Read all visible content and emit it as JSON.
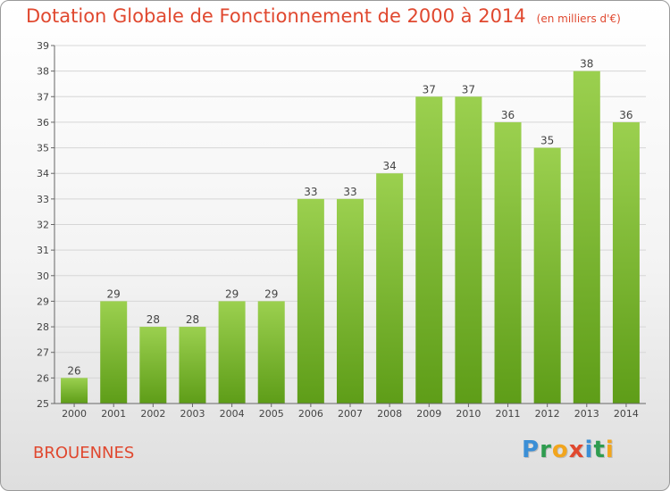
{
  "header": {
    "title": "Dotation Globale de Fonctionnement de 2000 à 2014",
    "unit": "(en milliers d'€)"
  },
  "footer": {
    "commune": "BROUENNES",
    "logo": "Proxiti"
  },
  "colors": {
    "bar_top": "#9bd04f",
    "bar_bottom": "#5e9d18",
    "title": "#e0482f"
  },
  "chart_data": {
    "type": "bar",
    "title": "Dotation Globale de Fonctionnement de 2000 à 2014",
    "xlabel": "",
    "ylabel": "",
    "ylim": [
      25,
      39
    ],
    "yticks": [
      25,
      26,
      27,
      28,
      29,
      30,
      31,
      32,
      33,
      34,
      35,
      36,
      37,
      38,
      39
    ],
    "grid": true,
    "categories": [
      "2000",
      "2001",
      "2002",
      "2003",
      "2004",
      "2005",
      "2006",
      "2007",
      "2008",
      "2009",
      "2010",
      "2011",
      "2012",
      "2013",
      "2014"
    ],
    "values": [
      26,
      29,
      28,
      28,
      29,
      29,
      33,
      33,
      34,
      37,
      37,
      36,
      35,
      38,
      36
    ]
  }
}
